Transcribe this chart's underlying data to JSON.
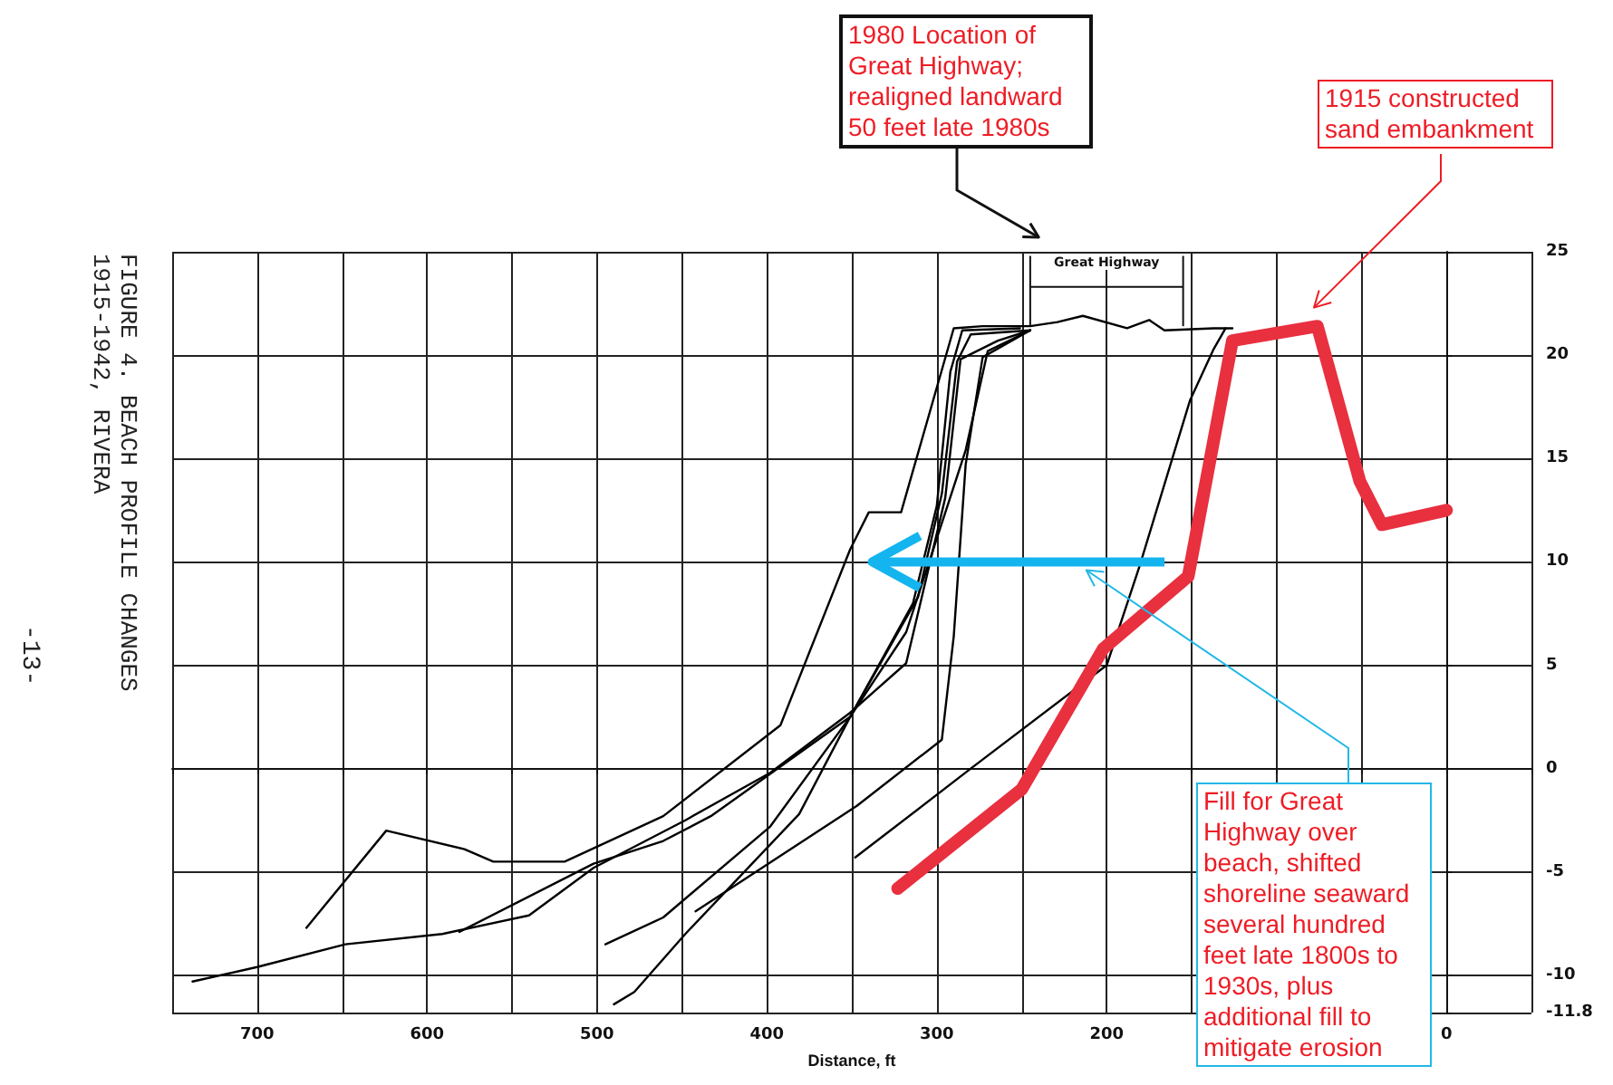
{
  "chart_data": {
    "type": "line",
    "title": "FIGURE 4.  BEACH PROFILE CHANGES",
    "subtitle": "1915-1942, RIVERA",
    "xlabel": "Distance, ft",
    "annotations": [
      "Great Highway",
      "1980 Location of Great Highway; realigned landward 50 feet late 1980s",
      "1915 constructed sand embankment",
      "Fill for Great Highway over beach, shifted shoreline seaward several hundred feet late 1800s to 1930s, plus additional fill to mitigate erosion",
      "-13-"
    ],
    "xlim": [
      750,
      -50
    ],
    "xticks": [
      {
        "value": 750,
        "label": null
      },
      700,
      {
        "value": 650,
        "label": null
      },
      600,
      {
        "value": 550,
        "label": null
      },
      500,
      {
        "value": 450,
        "label": null
      },
      400,
      {
        "value": 350,
        "label": null
      },
      300,
      {
        "value": 250,
        "label": null
      },
      200,
      {
        "value": 150,
        "label": null
      },
      {
        "value": 100,
        "label": null
      },
      {
        "value": 50,
        "label": null
      },
      0,
      {
        "value": -50,
        "label": null
      }
    ],
    "ylim": [
      -11.8,
      25
    ],
    "yticks": [
      -11.8,
      -10,
      -5,
      0,
      5,
      10,
      15,
      20,
      25
    ],
    "grid": true,
    "marker": "none",
    "line_style": "solid",
    "series": [
      {
        "color": "#000000",
        "x": [
          671,
          624,
          578,
          561,
          519,
          461,
          392,
          351,
          340,
          321,
          290,
          273,
          245,
          229,
          214,
          188,
          175,
          166,
          137,
          126
        ],
        "values": [
          -7.7,
          -3.0,
          -3.9,
          -4.5,
          -4.5,
          -2.3,
          2.1,
          10.6,
          12.4,
          12.4,
          21.3,
          21.4,
          21.4,
          21.6,
          21.9,
          21.3,
          21.7,
          21.2,
          21.3,
          21.3
        ]
      },
      {
        "color": "#000000",
        "x": [
          738,
          700,
          648,
          591,
          540,
          502,
          448,
          398,
          351,
          318,
          295,
          286,
          264,
          245
        ],
        "values": [
          -10.3,
          -9.6,
          -8.5,
          -8.0,
          -7.1,
          -4.8,
          -2.5,
          -0.2,
          2.7,
          5.1,
          13.1,
          19.8,
          20.7,
          21.2
        ]
      },
      {
        "color": "#000000",
        "x": [
          581,
          502,
          461,
          433,
          351,
          314,
          300,
          292,
          285,
          251
        ],
        "values": [
          -7.9,
          -4.6,
          -3.5,
          -2.3,
          2.5,
          8.0,
          12.7,
          19.2,
          21.2,
          21.3
        ]
      },
      {
        "color": "#000000",
        "x": [
          495,
          461,
          398,
          351,
          311,
          297,
          288,
          280,
          245
        ],
        "values": [
          -8.5,
          -7.2,
          -2.8,
          2.5,
          8.3,
          13.3,
          19.7,
          21.0,
          21.2
        ]
      },
      {
        "color": "#000000",
        "x": [
          490,
          478,
          448,
          381,
          351,
          318,
          283,
          270,
          245
        ],
        "values": [
          -11.4,
          -10.8,
          -8.0,
          -2.2,
          2.5,
          6.6,
          15.4,
          20.2,
          21.2
        ]
      },
      {
        "color": "#000000",
        "x": [
          442,
          347,
          297,
          290,
          283,
          273,
          245
        ],
        "values": [
          -6.9,
          -1.8,
          1.4,
          6.4,
          14.7,
          19.9,
          21.2
        ]
      },
      {
        "color": "#000000",
        "x": [
          348,
          280,
          200,
          181,
          151,
          137,
          130
        ],
        "values": [
          -4.3,
          0.0,
          5.0,
          9.7,
          17.8,
          20.3,
          21.3
        ]
      },
      {
        "color": "#e8303f",
        "x": [
          323,
          250,
          202,
          152,
          126,
          76,
          51,
          38,
          0
        ],
        "values": [
          -5.8,
          -1.0,
          5.8,
          9.3,
          20.7,
          21.4,
          13.9,
          11.8,
          12.5
        ]
      }
    ]
  }
}
